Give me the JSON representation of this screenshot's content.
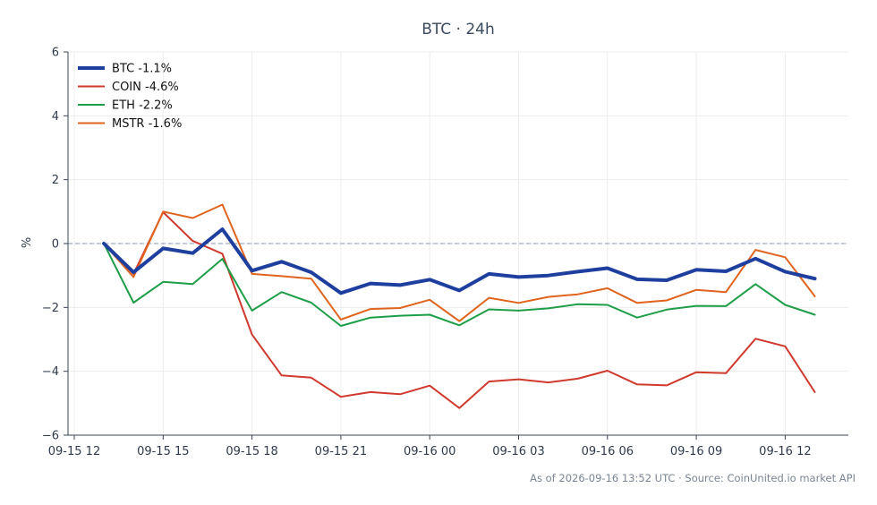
{
  "chart_data": {
    "type": "line",
    "title": "BTC · 24h",
    "xlabel": "",
    "ylabel": "%",
    "ylim": [
      -6,
      6
    ],
    "yticks": [
      -6,
      -4,
      -2,
      0,
      2,
      4,
      6
    ],
    "xlim": [
      0,
      26.5
    ],
    "xticks": [
      {
        "x": 0,
        "label": "09-15 12"
      },
      {
        "x": 3,
        "label": "09-15 15"
      },
      {
        "x": 6,
        "label": "09-15 18"
      },
      {
        "x": 9,
        "label": "09-15 21"
      },
      {
        "x": 12,
        "label": "09-16 00"
      },
      {
        "x": 15,
        "label": "09-16 03"
      },
      {
        "x": 18,
        "label": "09-16 06"
      },
      {
        "x": 21,
        "label": "09-16 09"
      },
      {
        "x": 24,
        "label": "09-16 12"
      }
    ],
    "x": [
      1,
      2,
      3,
      4,
      5,
      6,
      7,
      8,
      9,
      10,
      11,
      12,
      13,
      14,
      15,
      16,
      17,
      18,
      19,
      20,
      21,
      22,
      23,
      24,
      25
    ],
    "zero_line": true,
    "grid": true,
    "legend_position": "top-left",
    "series": [
      {
        "name": "BTC -1.1%",
        "color": "#1f3f9e",
        "width": 4,
        "values": [
          0.0,
          -0.9,
          -0.15,
          -0.3,
          0.45,
          -0.85,
          -0.57,
          -0.9,
          -1.55,
          -1.25,
          -1.3,
          -1.13,
          -1.47,
          -0.95,
          -1.05,
          -1.0,
          -0.88,
          -0.77,
          -1.12,
          -1.15,
          -0.82,
          -0.87,
          -0.47,
          -0.88,
          -1.1
        ]
      },
      {
        "name": "COIN -4.6%",
        "color": "#d03a2e",
        "width": 2,
        "values": [
          0.0,
          -0.95,
          0.98,
          0.08,
          -0.32,
          -2.85,
          -4.13,
          -4.2,
          -4.8,
          -4.65,
          -4.72,
          -4.45,
          -5.15,
          -4.32,
          -4.25,
          -4.35,
          -4.23,
          -3.98,
          -4.41,
          -4.44,
          -4.03,
          -4.06,
          -2.98,
          -3.22,
          -4.65
        ]
      },
      {
        "name": "ETH -2.2%",
        "color": "#1e9e48",
        "width": 2,
        "values": [
          0.0,
          -1.85,
          -1.2,
          -1.27,
          -0.48,
          -2.1,
          -1.52,
          -1.85,
          -2.58,
          -2.32,
          -2.26,
          -2.23,
          -2.56,
          -2.06,
          -2.1,
          -2.03,
          -1.9,
          -1.92,
          -2.32,
          -2.07,
          -1.95,
          -1.96,
          -1.27,
          -1.92,
          -2.23
        ]
      },
      {
        "name": "MSTR -1.6%",
        "color": "#e0641e",
        "width": 2,
        "values": [
          0.0,
          -1.05,
          1.0,
          0.8,
          1.22,
          -0.95,
          -1.02,
          -1.1,
          -2.38,
          -2.05,
          -2.02,
          -1.76,
          -2.43,
          -1.7,
          -1.86,
          -1.67,
          -1.59,
          -1.4,
          -1.86,
          -1.78,
          -1.45,
          -1.52,
          -0.2,
          -0.43,
          -1.65
        ]
      }
    ]
  },
  "footer": {
    "text": "As of 2026-09-16 13:52 UTC · Source: CoinUnited.io market API"
  }
}
